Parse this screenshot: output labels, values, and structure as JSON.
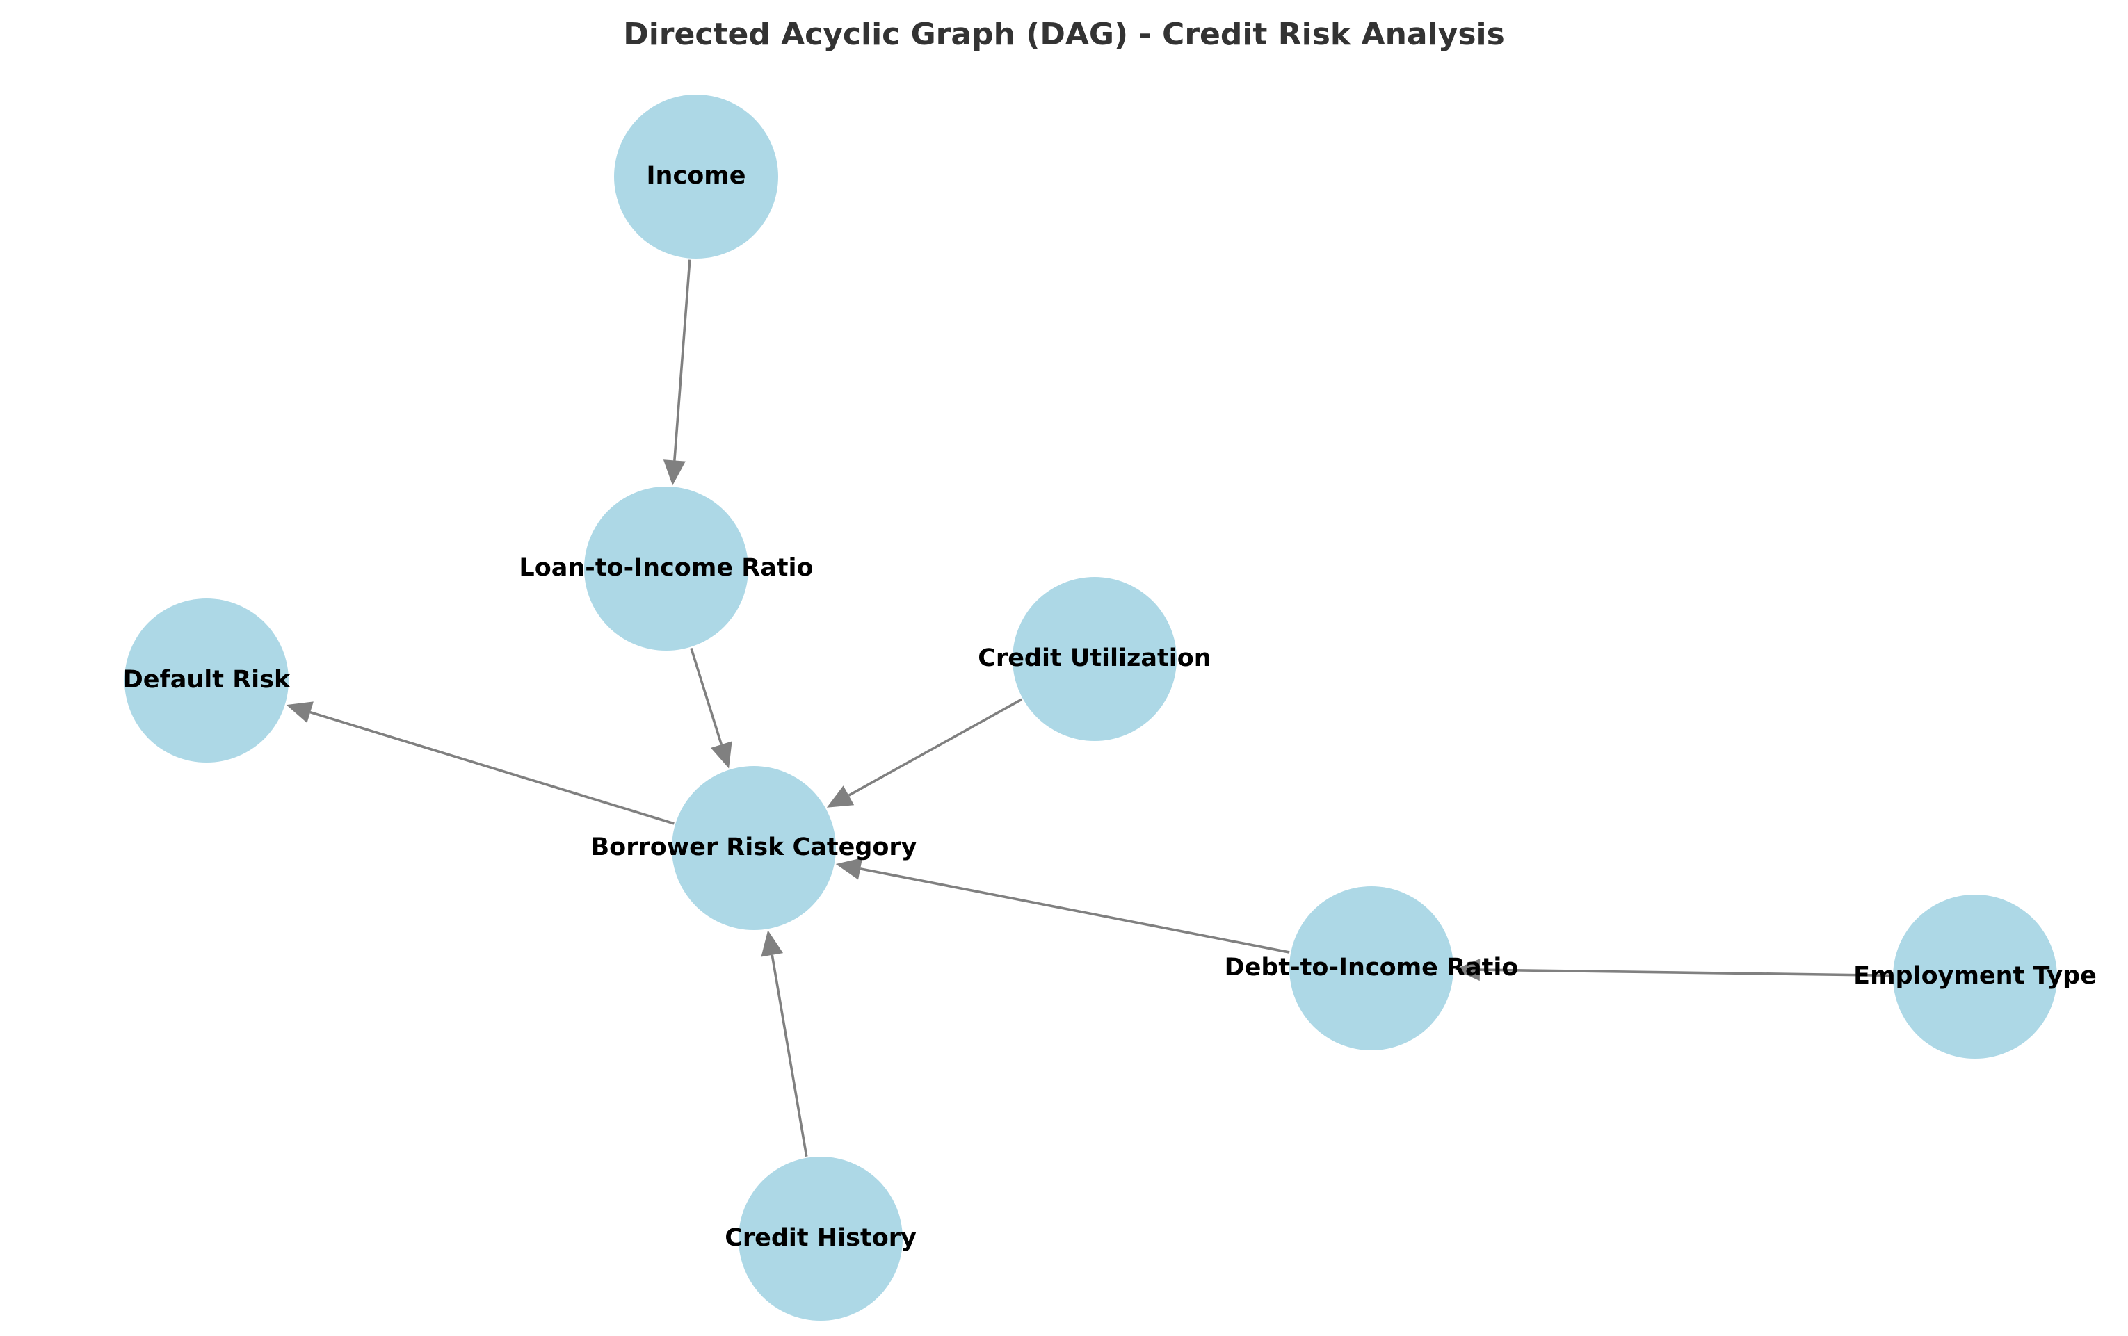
{
  "title": "Directed Acyclic Graph (DAG) - Credit Risk Analysis",
  "colors": {
    "node_fill": "#ADD8E6",
    "edge": "#808080",
    "title": "#333333",
    "label": "#000000"
  },
  "nodes": [
    {
      "id": "income",
      "label": "Income"
    },
    {
      "id": "loan_to_income",
      "label": "Loan-to-Income Ratio"
    },
    {
      "id": "default_risk",
      "label": "Default Risk"
    },
    {
      "id": "credit_utilization",
      "label": "Credit Utilization"
    },
    {
      "id": "borrower_risk",
      "label": "Borrower Risk Category"
    },
    {
      "id": "debt_to_income",
      "label": "Debt-to-Income Ratio"
    },
    {
      "id": "employment_type",
      "label": "Employment Type"
    },
    {
      "id": "credit_history",
      "label": "Credit History"
    }
  ],
  "edges": [
    {
      "from": "income",
      "to": "loan_to_income"
    },
    {
      "from": "loan_to_income",
      "to": "borrower_risk"
    },
    {
      "from": "credit_utilization",
      "to": "borrower_risk"
    },
    {
      "from": "borrower_risk",
      "to": "default_risk"
    },
    {
      "from": "debt_to_income",
      "to": "borrower_risk"
    },
    {
      "from": "employment_type",
      "to": "debt_to_income"
    },
    {
      "from": "credit_history",
      "to": "borrower_risk"
    }
  ]
}
